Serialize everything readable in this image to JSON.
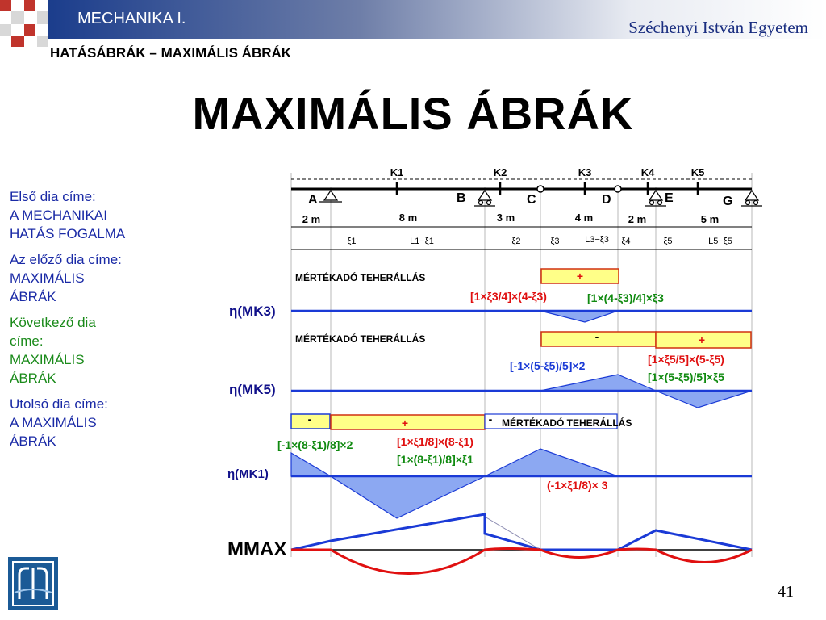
{
  "header": {
    "course": "MECHANIKA I.",
    "university": "Széchenyi István Egyetem",
    "subtitle": "HATÁSÁBRÁK – MAXIMÁLIS ÁBRÁK",
    "title": "MAXIMÁLIS ÁBRÁK"
  },
  "nav": {
    "first_label": "Első dia címe:",
    "first_title_1": "A MECHANIKAI",
    "first_title_2": "HATÁS FOGALMA",
    "prev_label": "Az előző dia címe:",
    "prev_title_1": "MAXIMÁLIS",
    "prev_title_2": "ÁBRÁK",
    "next_label_1": "Következő dia",
    "next_label_2": "címe:",
    "next_title_1": "MAXIMÁLIS",
    "next_title_2": "ÁBRÁK",
    "last_label": "Utolsó dia címe:",
    "last_title_1": "A MAXIMÁLIS",
    "last_title_2": "ÁBRÁK"
  },
  "page_number": "41",
  "colors": {
    "beam_blue": "#1a3ad6",
    "fill_blue": "#8ca8f2",
    "load_yellow": "#ffff88",
    "red": "#e01010",
    "green": "#108a10",
    "navy": "#10108a"
  },
  "diagram": {
    "sections": [
      "K1",
      "K2",
      "K3",
      "K4",
      "K5"
    ],
    "points": [
      "A",
      "B",
      "C",
      "D",
      "E",
      "G"
    ],
    "spans": [
      "2 m",
      "8 m",
      "3 m",
      "4 m",
      "2 m",
      "5 m"
    ],
    "xi": [
      "ξ1",
      "L1−ξ1",
      "ξ2",
      "ξ3",
      "L3−ξ3",
      "ξ4",
      "ξ5",
      "L5−ξ5"
    ],
    "load_label": "MÉRTÉKADÓ TEHERÁLLÁS",
    "plus": "+",
    "minus": "-",
    "eta_k3": "η(MK3)",
    "eta_k5": "η(MK5)",
    "eta_k1": "η(MK1)",
    "mmax": "MMAX",
    "k3_formula_left": "[1×ξ3/4]×(4-ξ3)",
    "k3_formula_right": "[1×(4-ξ3)/4]×ξ3",
    "k5_formula_neg": "[-1×(5-ξ5)/5]×2",
    "k5_formula_pos1": "[1×ξ5/5]×(5-ξ5)",
    "k5_formula_pos2": "[1×(5-ξ5)/5]×ξ5",
    "k1_formula_neg": "[-1×(8-ξ1)/8]×2",
    "k1_formula_pos1": "[1×ξ1/8]×(8-ξ1)",
    "k1_formula_pos2": "[1×(8-ξ1)/8]×ξ1",
    "k1_formula_neg2": "(-1×ξ1/8)× 3"
  }
}
